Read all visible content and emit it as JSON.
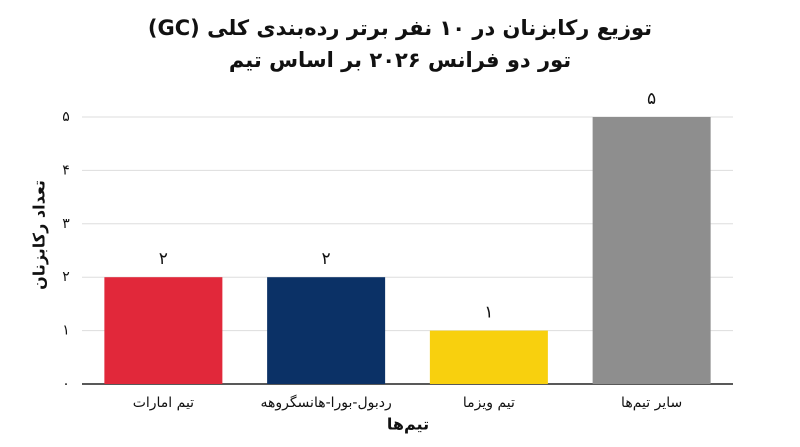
{
  "chart_data": {
    "type": "bar",
    "title": "توزیع رکابزنان در ۱۰ نفر برتر رده‌بندی کلی (GC) تور دو فرانس ۲۰۲۶ بر اساس تیم",
    "x_label": "تیم‌ها",
    "y_label": "تعداد رکابزنان",
    "categories": [
      "تیم امارات",
      "ردبول-بورا-هانسگروهه",
      "تیم ویزما",
      "سایر تیم‌ها"
    ],
    "values": [
      2,
      2,
      1,
      5
    ],
    "value_labels": [
      "۲",
      "۲",
      "۱",
      "۵"
    ],
    "colors": [
      "#e1283a",
      "#0b3166",
      "#f8d00e",
      "#8e8e8e"
    ],
    "ylim": [
      0,
      5
    ],
    "yticks": [
      {
        "value": 0,
        "label": "۰"
      },
      {
        "value": 1,
        "label": "۱"
      },
      {
        "value": 2,
        "label": "۲"
      },
      {
        "value": 3,
        "label": "۳"
      },
      {
        "value": 4,
        "label": "۴"
      },
      {
        "value": 5,
        "label": "۵"
      }
    ],
    "grid": true
  }
}
